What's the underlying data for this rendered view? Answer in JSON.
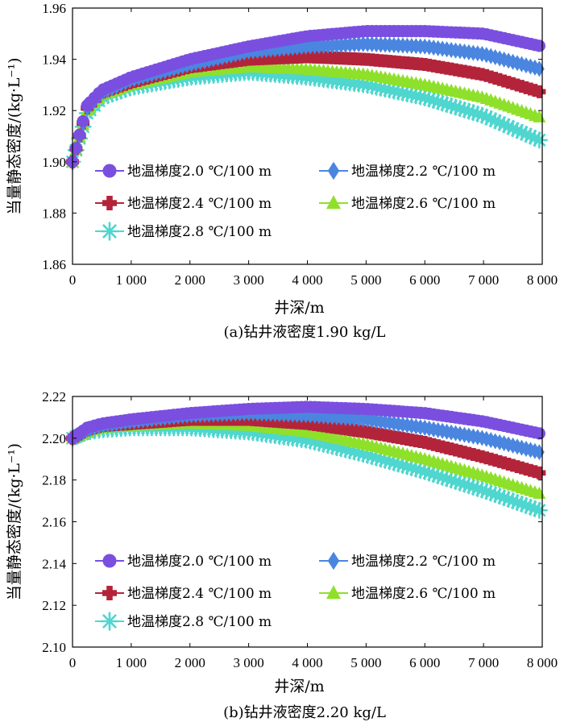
{
  "chart_data": [
    {
      "type": "scatter",
      "caption": "(a)钻井液密度1.90 kg/L",
      "xlabel": "井深/m",
      "ylabel": "当量静态密度/(kg·L⁻¹)",
      "xlim": [
        0,
        8000
      ],
      "ylim": [
        1.86,
        1.96
      ],
      "xticks": [
        0,
        1000,
        2000,
        3000,
        4000,
        5000,
        6000,
        7000,
        8000
      ],
      "xtick_labels": [
        "0",
        "1 000",
        "2 000",
        "3 000",
        "4 000",
        "5 000",
        "6 000",
        "7 000",
        "8 000"
      ],
      "yticks": [
        1.86,
        1.88,
        1.9,
        1.92,
        1.94,
        1.96
      ],
      "ytick_labels": [
        "1.86",
        "1.88",
        "1.90",
        "1.92",
        "1.94",
        "1.96"
      ],
      "legend_position": "center-left",
      "series": [
        {
          "name": "地温梯度2.0 ℃/100 m",
          "color": "#7a4fe0",
          "marker": "circle",
          "x": [
            0,
            250,
            500,
            1000,
            2000,
            3000,
            4000,
            5000,
            6000,
            7000,
            8000
          ],
          "y": [
            1.9,
            1.922,
            1.928,
            1.933,
            1.94,
            1.945,
            1.949,
            1.951,
            1.951,
            1.95,
            1.945
          ]
        },
        {
          "name": "地温梯度2.2 ℃/100 m",
          "color": "#4a86e0",
          "marker": "diamond",
          "x": [
            0,
            250,
            500,
            1000,
            2000,
            3000,
            4000,
            5000,
            6000,
            7000,
            8000
          ],
          "y": [
            1.9,
            1.921,
            1.927,
            1.932,
            1.938,
            1.943,
            1.945,
            1.946,
            1.945,
            1.942,
            1.936
          ]
        },
        {
          "name": "地温梯度2.4 ℃/100 m",
          "color": "#b3243a",
          "marker": "plus",
          "x": [
            0,
            250,
            500,
            1000,
            2000,
            3000,
            4000,
            5000,
            6000,
            7000,
            8000
          ],
          "y": [
            1.9,
            1.921,
            1.927,
            1.931,
            1.937,
            1.94,
            1.941,
            1.94,
            1.938,
            1.934,
            1.927
          ]
        },
        {
          "name": "地温梯度2.6 ℃/100 m",
          "color": "#8ee02a",
          "marker": "triangle",
          "x": [
            0,
            250,
            500,
            1000,
            2000,
            3000,
            4000,
            5000,
            6000,
            7000,
            8000
          ],
          "y": [
            1.9,
            1.92,
            1.926,
            1.93,
            1.935,
            1.937,
            1.936,
            1.934,
            1.93,
            1.925,
            1.917
          ]
        },
        {
          "name": "地温梯度2.8 ℃/100 m",
          "color": "#4fd6cf",
          "marker": "asterisk",
          "x": [
            0,
            250,
            500,
            1000,
            2000,
            3000,
            4000,
            5000,
            6000,
            7000,
            8000
          ],
          "y": [
            1.9,
            1.919,
            1.925,
            1.929,
            1.933,
            1.935,
            1.933,
            1.93,
            1.925,
            1.918,
            1.908
          ]
        }
      ]
    },
    {
      "type": "scatter",
      "caption": "(b)钻井液密度2.20 kg/L",
      "xlabel": "井深/m",
      "ylabel": "当量静态密度/(kg·L⁻¹)",
      "xlim": [
        0,
        8000
      ],
      "ylim": [
        2.1,
        2.22
      ],
      "xticks": [
        0,
        1000,
        2000,
        3000,
        4000,
        5000,
        6000,
        7000,
        8000
      ],
      "xtick_labels": [
        "0",
        "1 000",
        "2 000",
        "3 000",
        "4 000",
        "5 000",
        "6 000",
        "7 000",
        "8 000"
      ],
      "yticks": [
        2.1,
        2.12,
        2.14,
        2.16,
        2.18,
        2.2,
        2.22
      ],
      "ytick_labels": [
        "2.10",
        "2.12",
        "2.14",
        "2.16",
        "2.18",
        "2.20",
        "2.22"
      ],
      "legend_position": "center-left",
      "series": [
        {
          "name": "地温梯度2.0 ℃/100 m",
          "color": "#7a4fe0",
          "marker": "circle",
          "x": [
            0,
            250,
            500,
            1000,
            2000,
            3000,
            4000,
            5000,
            6000,
            7000,
            8000
          ],
          "y": [
            2.2,
            2.205,
            2.207,
            2.209,
            2.212,
            2.214,
            2.215,
            2.214,
            2.212,
            2.208,
            2.202
          ]
        },
        {
          "name": "地温梯度2.2 ℃/100 m",
          "color": "#4a86e0",
          "marker": "diamond",
          "x": [
            0,
            250,
            500,
            1000,
            2000,
            3000,
            4000,
            5000,
            6000,
            7000,
            8000
          ],
          "y": [
            2.2,
            2.204,
            2.206,
            2.208,
            2.211,
            2.212,
            2.211,
            2.209,
            2.205,
            2.2,
            2.193
          ]
        },
        {
          "name": "地温梯度2.4 ℃/100 m",
          "color": "#b3243a",
          "marker": "plus",
          "x": [
            0,
            250,
            500,
            1000,
            2000,
            3000,
            4000,
            5000,
            6000,
            7000,
            8000
          ],
          "y": [
            2.2,
            2.204,
            2.206,
            2.207,
            2.209,
            2.209,
            2.207,
            2.203,
            2.198,
            2.191,
            2.183
          ]
        },
        {
          "name": "地温梯度2.6 ℃/100 m",
          "color": "#8ee02a",
          "marker": "triangle",
          "x": [
            0,
            250,
            500,
            1000,
            2000,
            3000,
            4000,
            5000,
            6000,
            7000,
            8000
          ],
          "y": [
            2.2,
            2.203,
            2.205,
            2.206,
            2.207,
            2.206,
            2.203,
            2.197,
            2.19,
            2.182,
            2.173
          ]
        },
        {
          "name": "地温梯度2.8 ℃/100 m",
          "color": "#4fd6cf",
          "marker": "asterisk",
          "x": [
            0,
            250,
            500,
            1000,
            2000,
            3000,
            4000,
            5000,
            6000,
            7000,
            8000
          ],
          "y": [
            2.2,
            2.203,
            2.204,
            2.205,
            2.205,
            2.203,
            2.199,
            2.192,
            2.184,
            2.175,
            2.165
          ]
        }
      ]
    }
  ]
}
